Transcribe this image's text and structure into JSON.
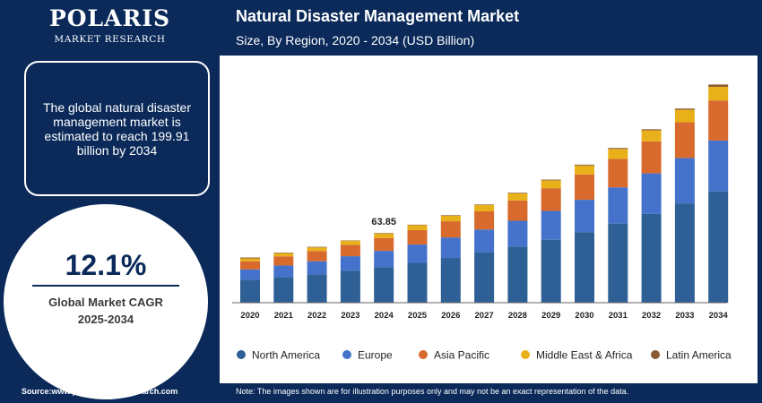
{
  "brand": {
    "name": "POLARIS",
    "sub": "MARKET RESEARCH"
  },
  "info_text": "The global natural disaster management market is estimated to reach 199.91 billion by 2034",
  "cagr": {
    "value": "12.1%",
    "label_line1": "Global Market CAGR",
    "label_line2": "2025-2034"
  },
  "footer": {
    "source": "Source:www.polarismarketresearch.com",
    "note": "Note: The images shown are for illustration purposes only and may not be an exact representation of the data."
  },
  "colors": {
    "frame": "#0b2a5a",
    "north_america": "#2e5f95",
    "europe": "#4573cb",
    "asia_pacific": "#d96a2e",
    "middle_east_africa": "#e8b11a",
    "latin_america": "#8a5a35"
  },
  "chart_data": {
    "type": "bar",
    "stacked": true,
    "title": "Natural Disaster Management Market",
    "subtitle": "Size, By Region, 2020 - 2034 (USD Billion)",
    "categories": [
      "2020",
      "2021",
      "2022",
      "2023",
      "2024",
      "2025",
      "2026",
      "2027",
      "2028",
      "2029",
      "2030",
      "2031",
      "2032",
      "2033",
      "2034"
    ],
    "ylim": [
      0,
      215
    ],
    "grid": false,
    "legend_position": "bottom",
    "annotations": [
      {
        "category": "2024",
        "text": "63.85"
      }
    ],
    "series": [
      {
        "name": "North America",
        "color": "#2e5f95",
        "values": [
          21.0,
          23.5,
          26.1,
          29.2,
          32.5,
          36.5,
          41.0,
          46.0,
          51.5,
          57.7,
          64.7,
          72.5,
          81.3,
          91.0,
          102.0
        ]
      },
      {
        "name": "Europe",
        "color": "#4573cb",
        "values": [
          9.5,
          10.6,
          11.9,
          13.4,
          15.0,
          16.8,
          18.8,
          21.1,
          23.6,
          26.4,
          29.6,
          33.2,
          37.2,
          41.6,
          46.6
        ]
      },
      {
        "name": "Asia Pacific",
        "color": "#d96a2e",
        "values": [
          7.5,
          8.4,
          9.4,
          10.5,
          11.8,
          13.2,
          14.8,
          16.6,
          18.6,
          20.8,
          23.3,
          26.1,
          29.3,
          32.8,
          36.7
        ]
      },
      {
        "name": "Middle East & Africa",
        "color": "#e8b11a",
        "values": [
          2.6,
          2.9,
          3.3,
          3.7,
          4.1,
          4.6,
          5.1,
          5.7,
          6.4,
          7.2,
          8.1,
          9.1,
          10.1,
          11.4,
          12.5
        ]
      },
      {
        "name": "Latin America",
        "color": "#8a5a35",
        "values": [
          0.8,
          0.5,
          0.5,
          0.3,
          0.45,
          0.4,
          0.5,
          0.55,
          0.6,
          0.7,
          0.8,
          0.9,
          1.0,
          1.1,
          2.11
        ]
      }
    ]
  }
}
